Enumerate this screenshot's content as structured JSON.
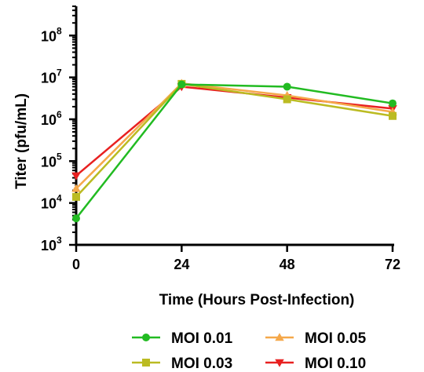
{
  "chart_data": {
    "type": "line",
    "xlabel": "Time (Hours Post-Infection)",
    "ylabel": "Titer (pfu/mL)",
    "x": [
      0,
      24,
      48,
      72
    ],
    "x_ticks": [
      "0",
      "24",
      "48",
      "72"
    ],
    "xlim": [
      0,
      72
    ],
    "y_scale": "log",
    "ylim": [
      1000,
      500000000
    ],
    "y_ticks": [
      {
        "base": "10",
        "exp": "3",
        "value": 1000
      },
      {
        "base": "10",
        "exp": "4",
        "value": 10000
      },
      {
        "base": "10",
        "exp": "5",
        "value": 100000
      },
      {
        "base": "10",
        "exp": "6",
        "value": 1000000
      },
      {
        "base": "10",
        "exp": "7",
        "value": 10000000
      },
      {
        "base": "10",
        "exp": "8",
        "value": 100000000
      }
    ],
    "legend_position": "bottom",
    "series": [
      {
        "name": "MOI 0.01",
        "color": "#22bb22",
        "marker": "circle",
        "values": [
          4300,
          6800000,
          6000000,
          2400000
        ]
      },
      {
        "name": "MOI 0.03",
        "color": "#bbbb22",
        "marker": "square",
        "values": [
          14000,
          7000000,
          3000000,
          1200000
        ]
      },
      {
        "name": "MOI 0.05",
        "color": "#f5a84a",
        "marker": "triangle-up",
        "values": [
          22000,
          7200000,
          3700000,
          1500000
        ]
      },
      {
        "name": "MOI 0.10",
        "color": "#e82020",
        "marker": "triangle-down",
        "values": [
          45000,
          6000000,
          3300000,
          1800000
        ]
      }
    ]
  }
}
